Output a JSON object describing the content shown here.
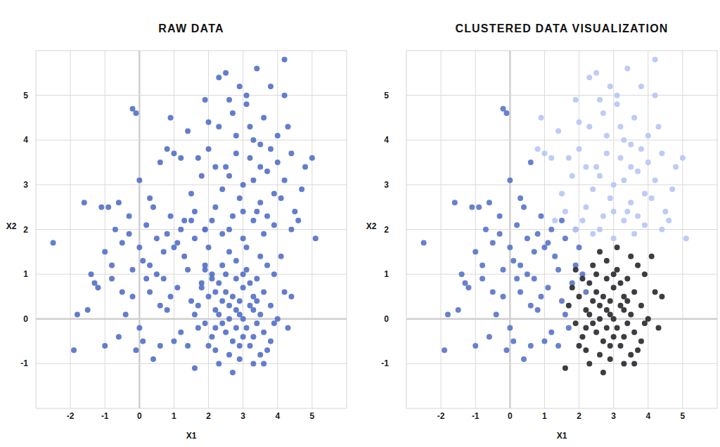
{
  "chart_data": [
    {
      "type": "scatter",
      "title": "RAW DATA",
      "x_label": "X1",
      "y_label": "X2",
      "xlim": [
        -3,
        6
      ],
      "ylim": [
        -2,
        6
      ],
      "xticks": [
        -2,
        -1,
        0,
        1,
        2,
        3,
        4,
        5
      ],
      "yticks": [
        -1,
        0,
        1,
        2,
        3,
        4,
        5
      ],
      "grid": true,
      "marker": "circle",
      "series": [
        {
          "color": "#5672c8",
          "x": [
            0.5,
            -0.2,
            1.0,
            0.2,
            -0.8,
            1.5,
            0.8,
            -0.5,
            1.9,
            0.0,
            -1.2,
            0.4,
            1.2,
            -0.3,
            1.6,
            0.7,
            -1.5,
            0.1,
            1.8,
            -0.6,
            0.9,
            -1.0,
            1.4,
            0.3,
            -0.1,
            2.0,
            0.6,
            -0.9,
            1.1,
            -2.5,
            -1.9,
            -1.8,
            -1.0,
            -0.2,
            -0.1,
            0.0,
            0.3,
            1.7,
            1.5,
            0.4,
            -0.4,
            1.0,
            -1.4,
            0.2,
            1.3,
            -0.7,
            0.8,
            -0.2,
            1.6,
            0.5,
            -1.1,
            -1.3,
            0.9,
            2.1,
            0.0,
            -0.5,
            1.2,
            0.6,
            1.9,
            -0.8,
            0.1,
            1.4,
            -0.3,
            0.7,
            2.2,
            -0.6,
            0.3,
            1.1,
            -1.6,
            0.6,
            3.0,
            2.5,
            3.5,
            2.2,
            3.8,
            2.8,
            3.3,
            1.8,
            4.2,
            2.6,
            3.6,
            1.5,
            4.5,
            2.9,
            3.2,
            2.0,
            4.0,
            2.4,
            3.7,
            1.2,
            4.8,
            3.0,
            2.7,
            3.4,
            1.9,
            4.2,
            2.3,
            3.9,
            1.0,
            5.0,
            2.1,
            3.1,
            4.4,
            2.8,
            3.5,
            1.6,
            4.6,
            2.5,
            3.8,
            0.9,
            4.2,
            3.3,
            2.6,
            1.4,
            4.1,
            3.0,
            2.4,
            3.6,
            1.9,
            4.3,
            2.2,
            3.9,
            1.7,
            3.2,
            2.9,
            3.5,
            4.7,
            2.0,
            0.8,
            3.4,
            2.7,
            4.0,
            3.1,
            1.3,
            5.1,
            2.3,
            3.7,
            2.6,
            4.4,
            3.3,
            2.9,
            3.1,
            2.6,
            3.3,
            2.4,
            3.0,
            2.7,
            3.5,
            2.2,
            3.2,
            2.8,
            3.6,
            2.5,
            3.4,
            2.1,
            3.8,
            2.9,
            2.3,
            3.1,
            2.6,
            3.7,
            2.0,
            4.0,
            2.8,
            3.3,
            1.9,
            4.2,
            2.4,
            3.5,
            1.7,
            2.7,
            3.9,
            2.2,
            3.0,
            3.2,
            2.6,
            2.9,
            3.4,
            2.5,
            3.6,
            1.6,
            4.4,
            2.1,
            3.8,
            2.3,
            3.1,
            2.8,
            3.3,
            2.0,
            4.1,
            3.0,
            2.7,
            3.5,
            2.4,
            3.2,
            1.8,
            3.7,
            2.9,
            2.5,
            3.4,
            4.3,
            2.2,
            3.0,
            1.9,
            3.6,
            2.6,
            3.9,
            2.8,
            3.3,
            2.3
          ],
          "values": [
            1.0,
            0.5,
            1.6,
            2.1,
            0.9,
            0.4,
            0.2,
            1.7,
            1.2,
            -0.2,
            0.7,
            2.5,
            -0.3,
            2.3,
            1.8,
            1.5,
            0.2,
            1.3,
            0.8,
            -0.4,
            2.3,
            1.5,
            1.1,
            0.6,
            -0.7,
            1.6,
            -0.6,
            2.5,
            0.7,
            1.7,
            -0.7,
            0.1,
            -0.6,
            4.7,
            4.6,
            3.1,
            2.7,
            -0.2,
            2.2,
            -0.9,
            0.1,
            -0.5,
            1.0,
            0.9,
            1.4,
            2.0,
            1.9,
            1.1,
            0.1,
            1.8,
            2.5,
            0.8,
            0.5,
            1.0,
            1.6,
            0.6,
            2.0,
            3.5,
            2.0,
            1.2,
            -0.5,
            -0.6,
            1.9,
            0.9,
            0.6,
            2.6,
            1.2,
            1.7,
            2.6,
            0.3,
            3.0,
            3.4,
            2.6,
            2.5,
            3.8,
            4.1,
            2.2,
            3.2,
            3.1,
            2.0,
            4.5,
            2.8,
            2.4,
            5.2,
            3.6,
            3.8,
            4.1,
            2.9,
            3.3,
            3.6,
            3.4,
            2.4,
            4.6,
            5.6,
            4.9,
            5.0,
            4.3,
            2.1,
            3.7,
            3.6,
            2.2,
            4.8,
            3.7,
            3.7,
            3.9,
            2.4,
            2.2,
            5.5,
            5.2,
            4.5,
            5.8,
            3.1,
            3.2,
            4.2,
            2.7,
            1.8,
            1.9,
            1.9,
            2.0,
            4.3,
            3.4,
            2.8,
            3.6,
            4.3,
            2.7,
            3.4,
            2.9,
            4.4,
            3.8,
            2.4,
            2.3,
            3.5,
            5.0,
            2.2,
            1.8,
            5.4,
            2.3,
            4.9,
            2.0,
            4.0,
            0.1,
            -0.2,
            0.3,
            0.5,
            -0.1,
            0.7,
            -0.5,
            0.1,
            0.2,
            -0.6,
            0.9,
            -0.3,
            0.6,
            0.9,
            -0.4,
            0.3,
            -0.9,
            0.8,
            1.1,
            -0.8,
            -0.7,
            0.5,
            0.0,
            1.3,
            -1.0,
            -0.1,
            0.6,
            1.2,
            1.4,
            0.3,
            -1.2,
            1.0,
            -0.7,
            -0.4,
            0.3,
            0.0,
            0.4,
            -0.1,
            -0.3,
            0.6,
            -1.1,
            0.5,
            0.9,
            -0.5,
            -1.0,
            1.6,
            -0.2,
            0.2,
            -0.6,
            1.4,
            0.0,
            0.5,
            -0.8,
            0.4,
            0.8,
            0.7,
            1.2,
            -0.6,
            1.0,
            0.4,
            -0.2,
            -0.2,
            1.0,
            1.1,
            -1.0,
            1.5,
            -0.1,
            0.2,
            -0.4,
            0.1
          ]
        }
      ]
    },
    {
      "type": "scatter",
      "title": "CLUSTERED DATA VISUALIZATION",
      "x_label": "X1",
      "y_label": "X2",
      "xlim": [
        -3,
        6
      ],
      "ylim": [
        -2,
        6
      ],
      "xticks": [
        -2,
        -1,
        0,
        1,
        2,
        3,
        4,
        5
      ],
      "yticks": [
        -1,
        0,
        1,
        2,
        3,
        4,
        5
      ],
      "grid": true,
      "marker": "circle",
      "series": [
        {
          "color": "#5b76c9",
          "x": [
            0.5,
            -0.2,
            1.0,
            0.2,
            -0.8,
            1.5,
            0.8,
            -0.5,
            1.9,
            0.0,
            -1.2,
            0.4,
            1.2,
            -0.3,
            1.6,
            0.7,
            -1.5,
            0.1,
            1.8,
            -0.6,
            0.9,
            -1.0,
            1.4,
            0.3,
            -0.1,
            2.0,
            0.6,
            -0.9,
            1.1,
            -2.5,
            -1.9,
            -1.8,
            -1.0,
            -0.2,
            -0.1,
            0.0,
            0.3,
            1.7,
            1.5,
            0.4,
            -0.4,
            1.0,
            -1.4,
            0.2,
            1.3,
            -0.7,
            0.8,
            -0.2,
            1.6,
            0.5,
            -1.1,
            -1.3,
            0.9,
            2.1,
            0.0,
            -0.5,
            1.2,
            0.6,
            1.9,
            -0.8,
            0.1,
            1.4,
            -0.3,
            0.7,
            2.2,
            -0.6,
            0.3,
            1.1,
            -1.6,
            0.6
          ],
          "values": [
            1.0,
            0.5,
            1.6,
            2.1,
            0.9,
            0.4,
            0.2,
            1.7,
            1.2,
            -0.2,
            0.7,
            2.5,
            -0.3,
            2.3,
            1.8,
            1.5,
            0.2,
            1.3,
            0.8,
            -0.4,
            2.3,
            1.5,
            1.1,
            0.6,
            -0.7,
            1.6,
            -0.6,
            2.5,
            0.7,
            1.7,
            -0.7,
            0.1,
            -0.6,
            4.7,
            4.6,
            3.1,
            2.7,
            -0.2,
            2.2,
            -0.9,
            0.1,
            -0.5,
            1.0,
            0.9,
            1.4,
            2.0,
            1.9,
            1.1,
            0.1,
            1.8,
            2.5,
            0.8,
            0.5,
            1.0,
            1.6,
            0.6,
            2.0,
            3.5,
            2.0,
            1.2,
            -0.5,
            -0.6,
            1.9,
            0.9,
            0.6,
            2.6,
            1.2,
            1.7,
            2.6,
            0.3
          ]
        },
        {
          "color": "#b7c8f5",
          "x": [
            3.0,
            2.5,
            3.5,
            2.2,
            3.8,
            2.8,
            3.3,
            1.8,
            4.2,
            2.6,
            3.6,
            1.5,
            4.5,
            2.9,
            3.2,
            2.0,
            4.0,
            2.4,
            3.7,
            1.2,
            4.8,
            3.0,
            2.7,
            3.4,
            1.9,
            4.2,
            2.3,
            3.9,
            1.0,
            5.0,
            2.1,
            3.1,
            4.4,
            2.8,
            3.5,
            1.6,
            4.6,
            2.5,
            3.8,
            0.9,
            4.2,
            3.3,
            2.6,
            1.4,
            4.1,
            3.0,
            2.4,
            3.6,
            1.9,
            4.3,
            2.2,
            3.9,
            1.7,
            3.2,
            2.9,
            3.5,
            4.7,
            2.0,
            0.8,
            3.4,
            2.7,
            4.0,
            3.1,
            1.3,
            5.1,
            2.3,
            3.7,
            2.6,
            4.4,
            3.3
          ],
          "values": [
            3.0,
            3.4,
            2.6,
            2.5,
            3.8,
            4.1,
            2.2,
            3.2,
            3.1,
            2.0,
            4.5,
            2.8,
            2.4,
            5.2,
            3.6,
            3.8,
            4.1,
            2.9,
            3.3,
            3.6,
            3.4,
            2.4,
            4.6,
            5.6,
            4.9,
            5.0,
            4.3,
            2.1,
            3.7,
            3.6,
            2.2,
            4.8,
            3.7,
            3.7,
            3.9,
            2.4,
            2.2,
            5.5,
            5.2,
            4.5,
            5.8,
            3.1,
            3.2,
            4.2,
            2.7,
            1.8,
            1.9,
            1.9,
            2.0,
            4.3,
            3.4,
            2.8,
            3.6,
            4.3,
            2.7,
            3.4,
            2.9,
            4.4,
            3.8,
            2.4,
            2.3,
            3.5,
            5.0,
            2.2,
            1.8,
            5.4,
            2.3,
            4.9,
            2.0,
            4.0
          ]
        },
        {
          "color": "#2a2c31",
          "x": [
            2.9,
            3.1,
            2.6,
            3.3,
            2.4,
            3.0,
            2.7,
            3.5,
            2.2,
            3.2,
            2.8,
            3.6,
            2.5,
            3.4,
            2.1,
            3.8,
            2.9,
            2.3,
            3.1,
            2.6,
            3.7,
            2.0,
            4.0,
            2.8,
            3.3,
            1.9,
            4.2,
            2.4,
            3.5,
            1.7,
            2.7,
            3.9,
            2.2,
            3.0,
            3.2,
            2.6,
            2.9,
            3.4,
            2.5,
            3.6,
            1.6,
            4.4,
            2.1,
            3.8,
            2.3,
            3.1,
            2.8,
            3.3,
            2.0,
            4.1,
            3.0,
            2.7,
            3.5,
            2.4,
            3.2,
            1.8,
            3.7,
            2.9,
            2.5,
            3.4,
            4.3,
            2.2,
            3.0,
            1.9,
            3.6,
            2.6,
            3.9,
            2.8,
            3.3,
            2.3
          ],
          "values": [
            0.1,
            -0.2,
            0.3,
            0.5,
            -0.1,
            0.7,
            -0.5,
            0.1,
            0.2,
            -0.6,
            0.9,
            -0.3,
            0.6,
            0.9,
            -0.4,
            0.3,
            -0.9,
            0.8,
            1.1,
            -0.8,
            -0.7,
            0.5,
            0.0,
            1.3,
            -1.0,
            -0.1,
            0.6,
            1.2,
            1.4,
            0.3,
            -1.2,
            1.0,
            -0.7,
            -0.4,
            0.3,
            0.0,
            0.4,
            -0.1,
            -0.3,
            0.6,
            -1.1,
            0.5,
            0.9,
            -0.5,
            -1.0,
            1.6,
            -0.2,
            0.2,
            -0.6,
            1.4,
            0.0,
            0.5,
            -0.8,
            0.4,
            0.8,
            0.7,
            1.2,
            -0.6,
            1.0,
            0.4,
            -0.2,
            -0.2,
            1.0,
            1.1,
            -1.0,
            1.5,
            -0.1,
            0.2,
            -0.4,
            0.1
          ]
        }
      ]
    }
  ]
}
